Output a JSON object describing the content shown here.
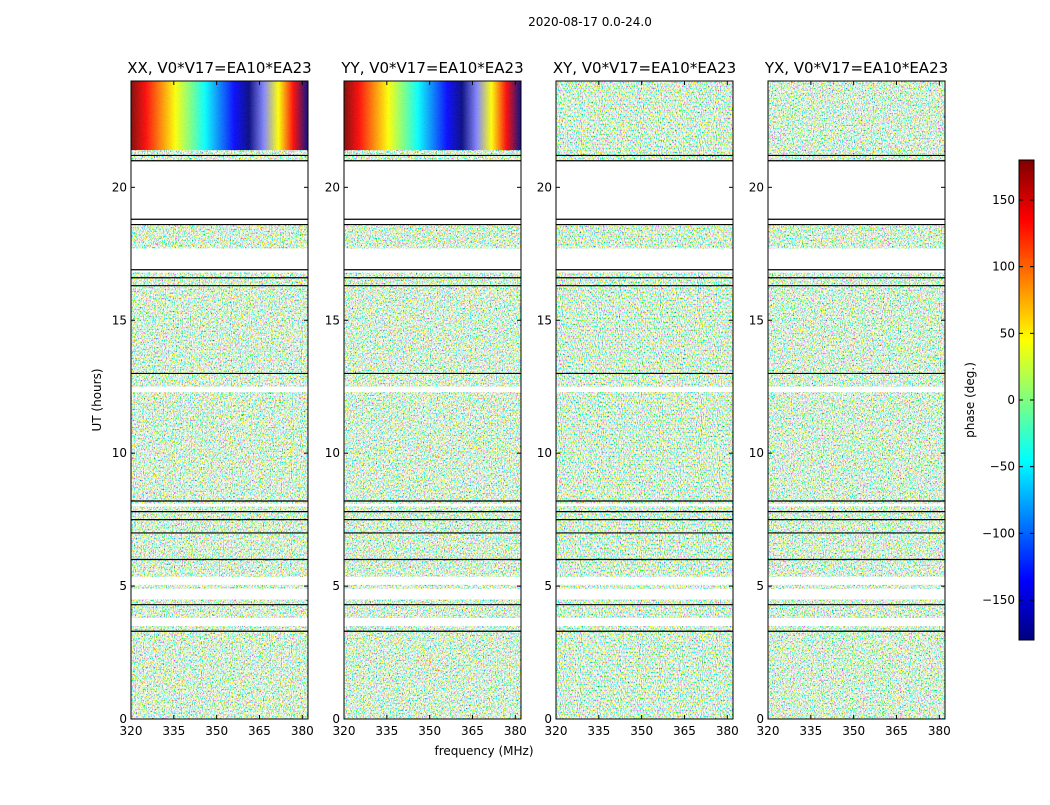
{
  "chart_data": {
    "type": "heatmap",
    "suptitle": "2020-08-17 0.0-24.0",
    "xlabel": "frequency (MHz)",
    "ylabel": "UT (hours)",
    "xlim": [
      320,
      382
    ],
    "ylim": [
      0,
      24
    ],
    "xticks": [
      320,
      335,
      350,
      365,
      380
    ],
    "yticks": [
      0,
      5,
      10,
      15,
      20
    ],
    "colorbar": {
      "label": "phase (deg.)",
      "range": [
        -180,
        180
      ],
      "ticks": [
        150,
        100,
        50,
        0,
        -50,
        -100,
        -150
      ],
      "tick_labels": [
        "150",
        "100",
        "50",
        "0",
        "−50",
        "−100",
        "−150"
      ],
      "colormap": "jet",
      "colors": [
        "#00007f",
        "#0000ff",
        "#007fff",
        "#00ffff",
        "#7fff7f",
        "#ffff00",
        "#ff7f00",
        "#ff0000",
        "#7f0000"
      ]
    },
    "panels": [
      {
        "title": "XX, V0*V17=EA10*EA23",
        "pol": "XX",
        "parallel": true
      },
      {
        "title": "YY, V0*V17=EA10*EA23",
        "pol": "YY",
        "parallel": true
      },
      {
        "title": "XY, V0*V17=EA10*EA23",
        "pol": "XY",
        "parallel": false
      },
      {
        "title": "YX, V0*V17=EA10*EA23",
        "pol": "YX",
        "parallel": false
      }
    ],
    "flagged_hours": [
      [
        18.6,
        21.0
      ],
      [
        16.8,
        17.7
      ],
      [
        12.3,
        12.5
      ],
      [
        8.0,
        8.1
      ],
      [
        5.05,
        5.35
      ],
      [
        4.5,
        4.9
      ],
      [
        3.5,
        3.8
      ]
    ],
    "coherent_band_hours": [
      21.4,
      24.0
    ],
    "gap_lines_hours": [
      21.0,
      21.2,
      18.6,
      18.8,
      16.6,
      16.9,
      16.3,
      13.0,
      8.2,
      7.8,
      7.5,
      7.0,
      6.0,
      4.3,
      3.3
    ]
  }
}
